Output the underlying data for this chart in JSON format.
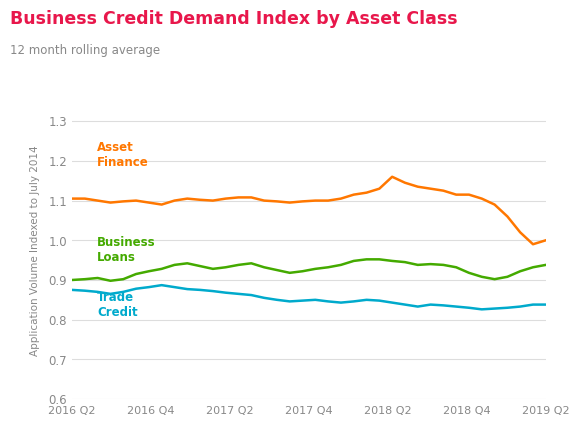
{
  "title": "Business Credit Demand Index by Asset Class",
  "subtitle": "12 month rolling average",
  "title_color": "#e8174b",
  "subtitle_color": "#888888",
  "ylabel": "Application Volume Indexed to July 2014",
  "ylim": [
    0.6,
    1.35
  ],
  "yticks": [
    0.6,
    0.7,
    0.8,
    0.9,
    1.0,
    1.1,
    1.2,
    1.3
  ],
  "xtick_labels": [
    "2016 Q2",
    "2016 Q4",
    "2017 Q2",
    "2017 Q4",
    "2018 Q2",
    "2018 Q4",
    "2019 Q2"
  ],
  "background_color": "#ffffff",
  "grid_color": "#dddddd",
  "asset_finance": {
    "color": "#ff7700",
    "label": "Asset\nFinance",
    "values": [
      1.105,
      1.105,
      1.1,
      1.095,
      1.098,
      1.1,
      1.095,
      1.09,
      1.1,
      1.105,
      1.102,
      1.1,
      1.105,
      1.108,
      1.108,
      1.1,
      1.098,
      1.095,
      1.098,
      1.1,
      1.1,
      1.105,
      1.115,
      1.12,
      1.13,
      1.16,
      1.145,
      1.135,
      1.13,
      1.125,
      1.115,
      1.115,
      1.105,
      1.09,
      1.06,
      1.02,
      0.99,
      1.0
    ]
  },
  "business_loans": {
    "color": "#44aa00",
    "label": "Business\nLoans",
    "values": [
      0.9,
      0.902,
      0.905,
      0.898,
      0.902,
      0.915,
      0.922,
      0.928,
      0.938,
      0.942,
      0.935,
      0.928,
      0.932,
      0.938,
      0.942,
      0.932,
      0.925,
      0.918,
      0.922,
      0.928,
      0.932,
      0.938,
      0.948,
      0.952,
      0.952,
      0.948,
      0.945,
      0.938,
      0.94,
      0.938,
      0.932,
      0.918,
      0.908,
      0.902,
      0.908,
      0.922,
      0.932,
      0.938
    ]
  },
  "trade_credit": {
    "color": "#00aacc",
    "label": "Trade\nCredit",
    "values": [
      0.875,
      0.873,
      0.87,
      0.865,
      0.87,
      0.878,
      0.882,
      0.887,
      0.882,
      0.877,
      0.875,
      0.872,
      0.868,
      0.865,
      0.862,
      0.855,
      0.85,
      0.846,
      0.848,
      0.85,
      0.846,
      0.843,
      0.846,
      0.85,
      0.848,
      0.843,
      0.838,
      0.833,
      0.838,
      0.836,
      0.833,
      0.83,
      0.826,
      0.828,
      0.83,
      0.833,
      0.838,
      0.838
    ]
  }
}
